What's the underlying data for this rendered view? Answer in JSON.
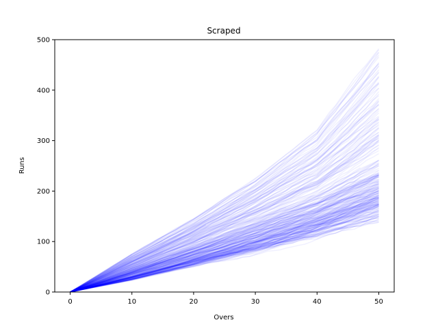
{
  "chart_data": {
    "type": "line",
    "title": "Scraped",
    "xlabel": "Overs",
    "ylabel": "Runs",
    "xlim": [
      -2.5,
      52.5
    ],
    "ylim": [
      0,
      500
    ],
    "xticks": [
      0,
      10,
      20,
      30,
      40,
      50
    ],
    "yticks": [
      0,
      100,
      200,
      300,
      400,
      500
    ],
    "grid": false,
    "legend": "none",
    "line_color": "#0000ff",
    "line_alpha": 0.06,
    "series_description_note": "",
    "envelope": {
      "x": [
        0,
        10,
        20,
        30,
        40,
        50
      ],
      "median": [
        0,
        45,
        90,
        135,
        180,
        240
      ],
      "low": [
        0,
        25,
        55,
        85,
        120,
        160
      ],
      "high": [
        0,
        75,
        145,
        225,
        320,
        480
      ]
    },
    "series": [
      {
        "x": [
          0,
          10,
          20,
          30,
          40,
          50
        ],
        "values": [
          0,
          45,
          92,
          140,
          190,
          250
        ]
      },
      {
        "x": [
          0,
          10,
          20,
          30,
          40,
          50
        ],
        "values": [
          0,
          40,
          85,
          130,
          175,
          230
        ]
      },
      {
        "x": [
          0,
          10,
          20,
          30,
          40,
          50
        ],
        "values": [
          0,
          55,
          105,
          160,
          215,
          280
        ]
      },
      {
        "x": [
          0,
          10,
          20,
          30,
          40,
          50
        ],
        "values": [
          0,
          35,
          75,
          115,
          160,
          210
        ]
      },
      {
        "x": [
          0,
          10,
          20,
          30,
          40,
          50
        ],
        "values": [
          0,
          60,
          120,
          185,
          250,
          330
        ]
      },
      {
        "x": [
          0,
          10,
          20,
          30,
          40,
          50
        ],
        "values": [
          0,
          30,
          65,
          100,
          140,
          185
        ]
      },
      {
        "x": [
          0,
          10,
          20,
          30,
          40,
          50
        ],
        "values": [
          0,
          70,
          135,
          210,
          300,
          440
        ]
      },
      {
        "x": [
          0,
          10,
          20,
          30,
          40,
          50
        ],
        "values": [
          0,
          75,
          145,
          225,
          320,
          480
        ]
      },
      {
        "x": [
          0,
          10,
          20,
          30,
          40,
          50
        ],
        "values": [
          0,
          25,
          55,
          85,
          120,
          160
        ]
      },
      {
        "x": [
          0,
          10,
          20,
          30,
          40,
          50
        ],
        "values": [
          0,
          50,
          100,
          150,
          200,
          260
        ]
      }
    ]
  }
}
